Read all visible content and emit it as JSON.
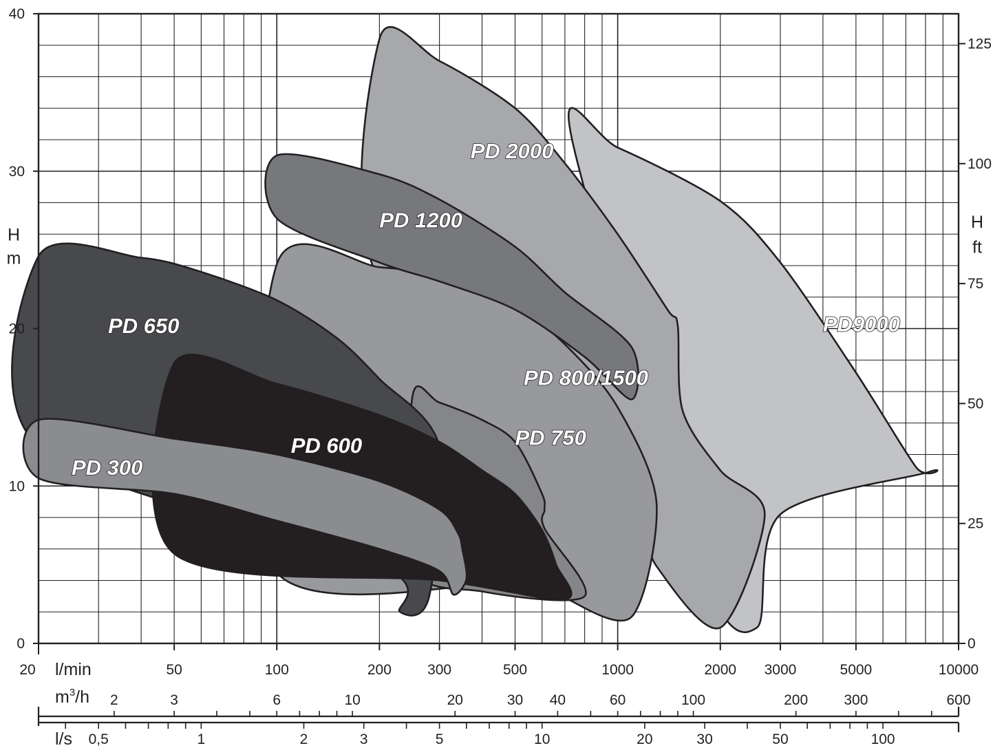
{
  "chart_data": {
    "type": "area",
    "x_scale": "log",
    "xlim": [
      20,
      10000
    ],
    "ylim": [
      0,
      40
    ],
    "grid": true,
    "y_left": {
      "label_line1": "H",
      "label_line2": "m",
      "ticks": [
        0,
        10,
        20,
        30,
        40
      ],
      "tick_labels": [
        "0",
        "10",
        "20",
        "30",
        "40"
      ]
    },
    "y_right": {
      "label_line1": "H",
      "label_line2": "ft",
      "ticks_ft": [
        0,
        25,
        50,
        75,
        100,
        125
      ],
      "tick_labels": [
        "0",
        "25",
        "50",
        "75",
        "100",
        "125"
      ]
    },
    "x_axes": [
      {
        "unit": "l/min",
        "ticks": [
          20,
          50,
          100,
          200,
          300,
          500,
          1000,
          2000,
          3000,
          5000,
          10000
        ],
        "tick_labels": [
          "20",
          "50",
          "100",
          "200",
          "300",
          "500",
          "1000",
          "2000",
          "3000",
          "5000",
          "10000"
        ]
      },
      {
        "unit": "m³/h",
        "unit_base": "m",
        "unit_sup": "3",
        "unit_tail": "/h",
        "ticks": [
          2,
          3,
          6,
          10,
          20,
          30,
          40,
          60,
          100,
          200,
          300,
          600
        ],
        "tick_labels": [
          "2",
          "3",
          "6",
          "10",
          "20",
          "30",
          "40",
          "60",
          "100",
          "200",
          "300",
          "600"
        ]
      },
      {
        "unit": "l/s",
        "ticks": [
          0.5,
          1,
          2,
          3,
          5,
          10,
          20,
          30,
          50,
          100
        ],
        "tick_labels": [
          "0,5",
          "1",
          "2",
          "3",
          "5",
          "10",
          "20",
          "30",
          "50",
          "100"
        ]
      }
    ],
    "series": [
      {
        "name": "PD9000",
        "label_at": [
          4000,
          20.3
        ],
        "fill": "#c2c3c7",
        "points": [
          [
            730,
            32.3
          ],
          [
            1000,
            31.5
          ],
          [
            2000,
            28.1
          ],
          [
            3000,
            24.2
          ],
          [
            5000,
            17.2
          ],
          [
            7500,
            11.2
          ],
          [
            8200,
            10.9
          ],
          [
            3000,
            8.2
          ],
          [
            2560,
            1.0
          ],
          [
            1750,
            4.8
          ]
        ]
      },
      {
        "name": "PD 2000",
        "label_at": [
          370,
          31.3
        ],
        "fill": "#a7a8ac",
        "points": [
          [
            200,
            38.4
          ],
          [
            300,
            37.0
          ],
          [
            500,
            34.0
          ],
          [
            700,
            30.5
          ],
          [
            1000,
            26.0
          ],
          [
            1400,
            21.2
          ],
          [
            1500,
            20.2
          ],
          [
            1550,
            14.8
          ],
          [
            2000,
            11.0
          ],
          [
            2700,
            8.2
          ],
          [
            2000,
            1.0
          ],
          [
            1300,
            4.9
          ],
          [
            1000,
            10.0
          ],
          [
            200,
            23.0
          ]
        ]
      },
      {
        "name": "PD 800/1500",
        "label_at": [
          530,
          16.9
        ],
        "fill": "#98999d",
        "points": [
          [
            100,
            24.1
          ],
          [
            200,
            23.9
          ],
          [
            300,
            23.3
          ],
          [
            500,
            21.4
          ],
          [
            700,
            19.0
          ],
          [
            1000,
            15.0
          ],
          [
            1300,
            8.9
          ],
          [
            1100,
            1.7
          ],
          [
            700,
            2.9
          ],
          [
            600,
            4.1
          ],
          [
            100,
            4.5
          ]
        ]
      },
      {
        "name": "PD 1200",
        "label_at": [
          200,
          26.9
        ],
        "fill": "#77787c",
        "points": [
          [
            100,
            31.0
          ],
          [
            200,
            29.8
          ],
          [
            300,
            28.2
          ],
          [
            500,
            25.2
          ],
          [
            700,
            22.3
          ],
          [
            1100,
            18.8
          ],
          [
            1100,
            15.5
          ],
          [
            800,
            18.2
          ],
          [
            500,
            21.2
          ],
          [
            300,
            23.0
          ],
          [
            200,
            24.2
          ],
          [
            100,
            27.0
          ]
        ]
      },
      {
        "name": "PD 750",
        "label_at": [
          500,
          13.1
        ],
        "fill": "#85868a",
        "points": [
          [
            250,
            15.7
          ],
          [
            300,
            15.3
          ],
          [
            400,
            14.2
          ],
          [
            500,
            12.8
          ],
          [
            600,
            9.5
          ],
          [
            610,
            8.5
          ],
          [
            610,
            7.3
          ],
          [
            800,
            3.0
          ],
          [
            400,
            3.3
          ],
          [
            250,
            5.0
          ]
        ]
      },
      {
        "name": "PD 650",
        "label_at": [
          32,
          20.2
        ],
        "fill": "#48494c",
        "points": [
          [
            20,
            24.6
          ],
          [
            40,
            24.5
          ],
          [
            60,
            23.6
          ],
          [
            100,
            21.8
          ],
          [
            150,
            19.4
          ],
          [
            200,
            16.8
          ],
          [
            300,
            12.5
          ],
          [
            280,
            3.0
          ],
          [
            230,
            2.0
          ],
          [
            200,
            5.0
          ],
          [
            20,
            12.5
          ]
        ]
      },
      {
        "name": "PD 600",
        "label_at": [
          110,
          12.6
        ],
        "fill": "#231f20",
        "points": [
          [
            50,
            17.8
          ],
          [
            100,
            16.5
          ],
          [
            200,
            14.5
          ],
          [
            300,
            12.8
          ],
          [
            400,
            11.0
          ],
          [
            500,
            9.5
          ],
          [
            600,
            7.2
          ],
          [
            660,
            5.0
          ],
          [
            700,
            2.8
          ],
          [
            300,
            4.0
          ],
          [
            50,
            5.7
          ]
        ]
      },
      {
        "name": "PD 300",
        "label_at": [
          25,
          11.2
        ],
        "fill": "#8b8c90",
        "points": [
          [
            20,
            14.2
          ],
          [
            50,
            13.0
          ],
          [
            100,
            12.0
          ],
          [
            200,
            10.3
          ],
          [
            300,
            8.5
          ],
          [
            340,
            7.0
          ],
          [
            350,
            6.0
          ],
          [
            360,
            4.1
          ],
          [
            330,
            3.1
          ],
          [
            300,
            4.6
          ],
          [
            200,
            6.0
          ],
          [
            100,
            7.8
          ],
          [
            50,
            9.5
          ],
          [
            20,
            10.5
          ]
        ]
      }
    ]
  }
}
